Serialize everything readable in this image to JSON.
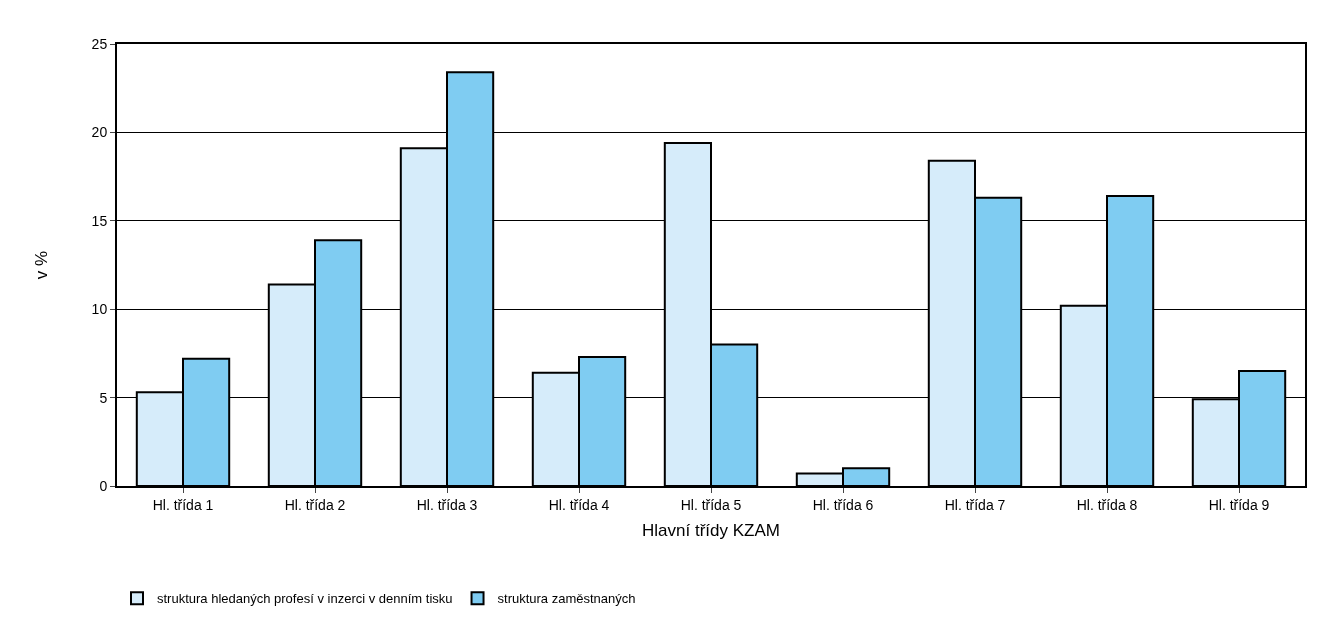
{
  "chart_data": {
    "type": "bar",
    "xlabel": "Hlavní třídy KZAM",
    "ylabel": "v %",
    "categories": [
      "Hl. třída 1",
      "Hl. třída 2",
      "Hl. třída 3",
      "Hl. třída 4",
      "Hl. třída 5",
      "Hl. třída 6",
      "Hl. třída 7",
      "Hl. třída 8",
      "Hl. třída 9"
    ],
    "series": [
      {
        "name": "struktura hledaných profesí v inzerci v denním tisku",
        "color": "#d6ecfa",
        "values": [
          5.3,
          11.4,
          19.1,
          6.4,
          19.4,
          0.7,
          18.4,
          10.2,
          4.9
        ]
      },
      {
        "name": "struktura zaměstnaných",
        "color": "#7fccf2",
        "values": [
          7.2,
          13.9,
          23.4,
          7.3,
          8.0,
          1.0,
          16.3,
          16.4,
          6.5
        ]
      }
    ],
    "ylim": [
      0,
      25
    ],
    "yticks": [
      0,
      5,
      10,
      15,
      20,
      25
    ],
    "grid": "y",
    "legend": "bottom left"
  }
}
